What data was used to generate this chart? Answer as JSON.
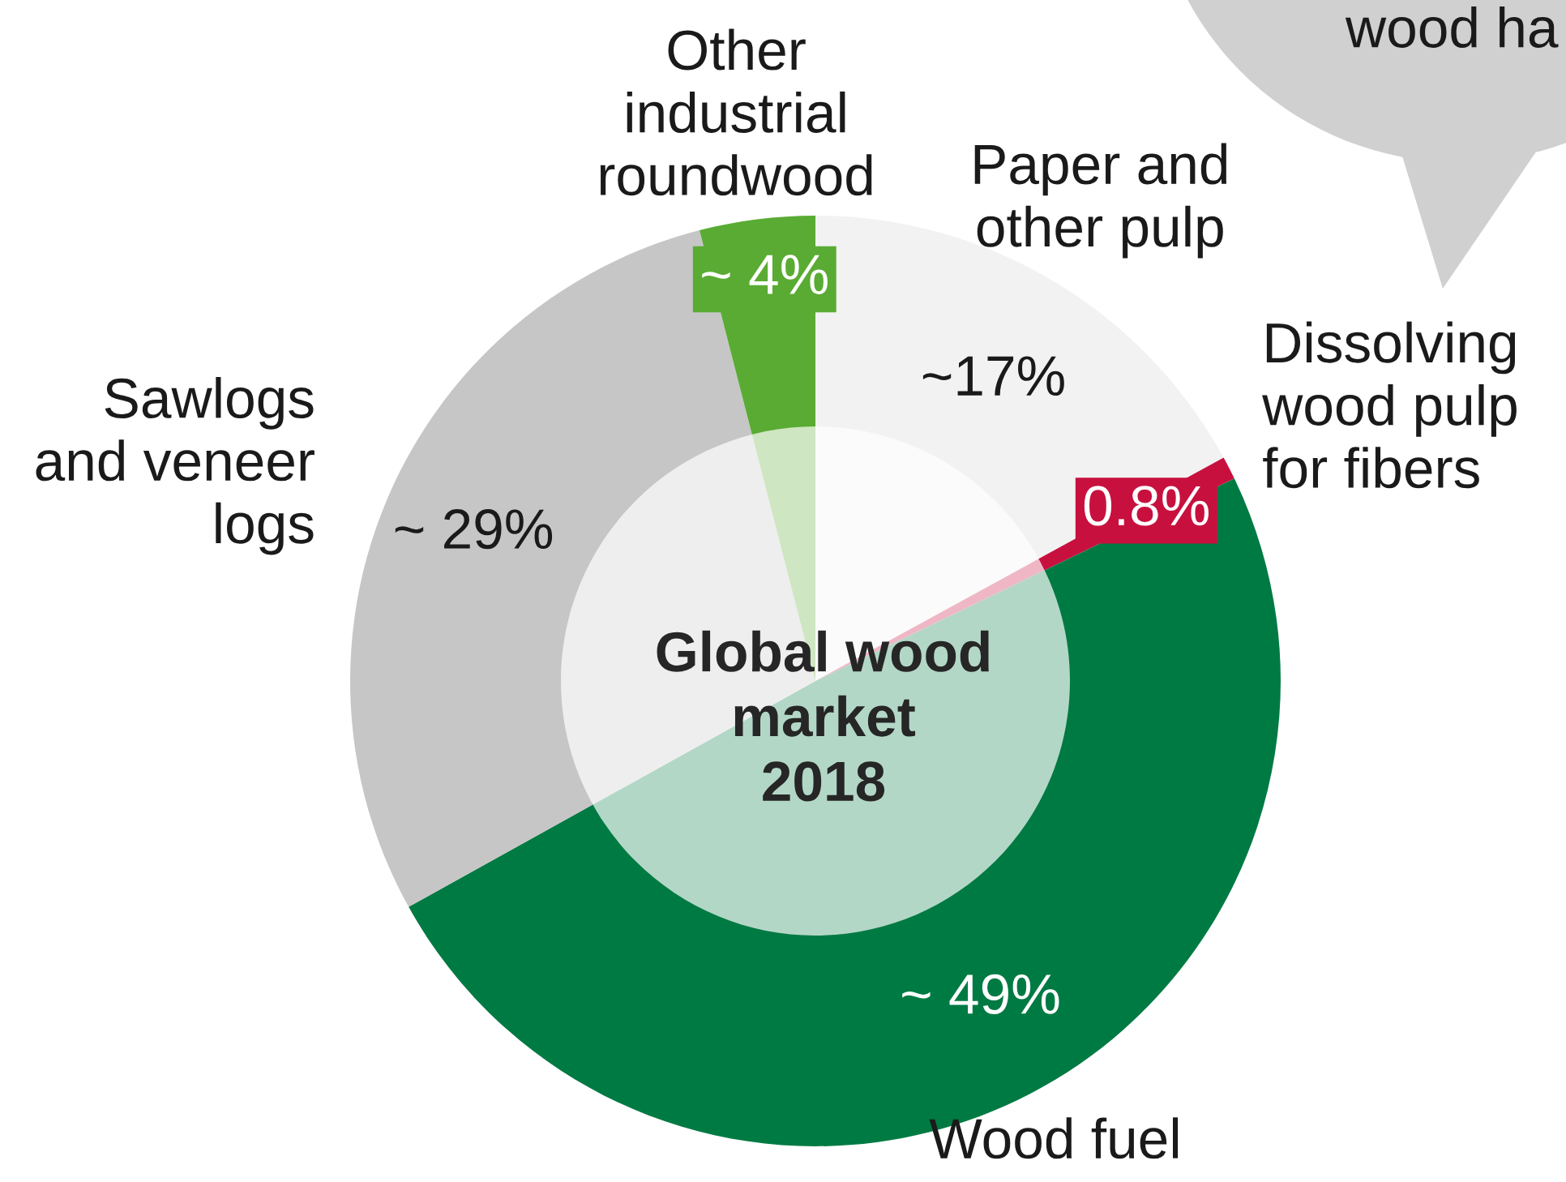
{
  "chart_data": {
    "type": "donut",
    "title": "Global wood\nmarket\n2018",
    "categories": [
      "Paper and\nother pulp",
      "Dissolving\nwood pulp\nfor fibers",
      "Wood fuel",
      "Sawlogs\nand veneer\nlogs",
      "Other\nindustrial\nroundwood"
    ],
    "values": [
      17,
      0.8,
      49,
      29,
      4
    ],
    "colors": [
      "#f2f2f2",
      "#c8103e",
      "#007a43",
      "#c6c6c6",
      "#5aab33"
    ],
    "value_labels": [
      "~17%",
      "0.8%",
      "~ 49%",
      "~ 29%",
      "~ 4%"
    ],
    "annotations": [
      "wood ha"
    ]
  }
}
